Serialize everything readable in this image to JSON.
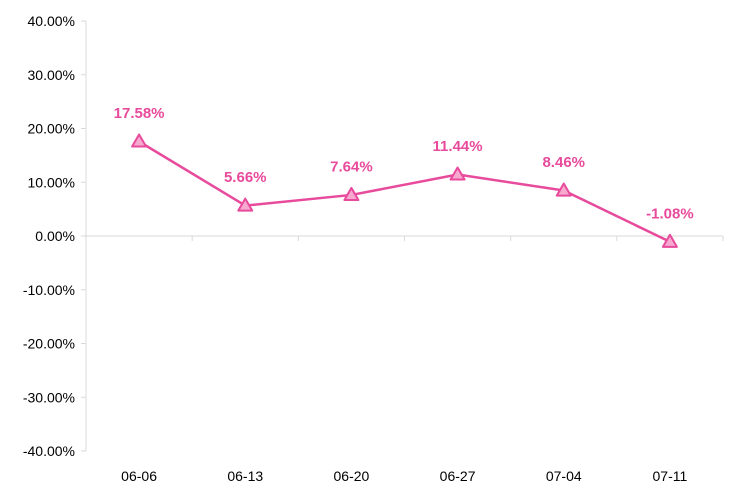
{
  "chart_data": {
    "type": "line",
    "title": "",
    "xlabel": "",
    "ylabel": "",
    "categories": [
      "06-06",
      "06-13",
      "06-20",
      "06-27",
      "07-04",
      "07-11"
    ],
    "series": [
      {
        "values": [
          17.58,
          5.66,
          7.64,
          11.44,
          8.46,
          -1.08
        ],
        "labels": [
          "17.58%",
          "5.66%",
          "7.64%",
          "11.44%",
          "8.46%",
          "-1.08%"
        ],
        "color": "#e84a9c",
        "marker": "triangle"
      }
    ],
    "ylim": [
      -40,
      40
    ],
    "yticks": [
      40,
      30,
      20,
      10,
      0,
      -10,
      -20,
      -30,
      -40
    ],
    "ytick_labels": [
      "40.00%",
      "30.00%",
      "20.00%",
      "10.00%",
      "0.00%",
      "-10.00%",
      "-20.00%",
      "-30.00%",
      "-40.00%"
    ],
    "grid": false,
    "legend": "none"
  },
  "colors": {
    "series": "#e84a9c",
    "axis": "#d9d9d9",
    "tick_text": "#000000"
  }
}
